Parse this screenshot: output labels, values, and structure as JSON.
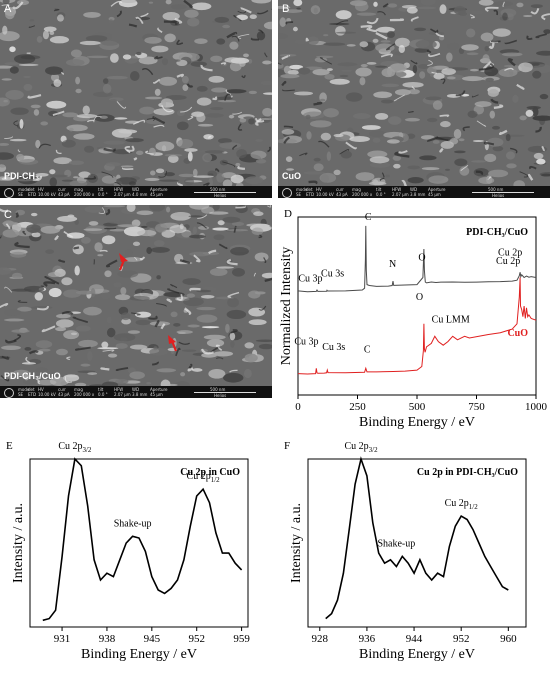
{
  "panels": {
    "A": {
      "letter": "A",
      "label": "PDI-CH₃",
      "info": {
        "headers": [
          "mode",
          "det",
          "HV",
          "curr",
          "mag",
          "tilt",
          "HFW",
          "WD",
          "Aperture"
        ],
        "values": [
          "SE",
          "ETD",
          "10.00 kV",
          "43 pA",
          "200 000 x",
          "0.0 °",
          "2.07 µm",
          "4.0 mm",
          "45 µm"
        ],
        "scale": "500 nm",
        "brand": "Helios"
      }
    },
    "B": {
      "letter": "B",
      "label": "CuO",
      "info": {
        "headers": [
          "mode",
          "det",
          "HV",
          "curr",
          "mag",
          "tilt",
          "HFW",
          "WD",
          "Aperture"
        ],
        "values": [
          "SE",
          "ETD",
          "10.00 kV",
          "43 pA",
          "200 000 x",
          "0.0 °",
          "2.07 µm",
          "3.8 mm",
          "45 µm"
        ],
        "scale": "500 nm",
        "brand": "Helios"
      }
    },
    "C": {
      "letter": "C",
      "label": "PDI-CH₃/CuO",
      "info": {
        "headers": [
          "mode",
          "det",
          "HV",
          "curr",
          "mag",
          "tilt",
          "HFW",
          "WD",
          "Aperture"
        ],
        "values": [
          "SE",
          "ETD",
          "10.00 kV",
          "43 pA",
          "200 000 x",
          "0.0 °",
          "2.07 µm",
          "3.8 mm",
          "45 µm"
        ],
        "scale": "500 nm",
        "brand": "Helios"
      }
    }
  },
  "colors": {
    "pdi_line": "#4a4a4a",
    "cuo_line": "#e02020",
    "axis": "#000000",
    "arrow": "#e02020"
  },
  "chart_data": [
    {
      "id": "D",
      "letter": "D",
      "type": "line",
      "xlabel": "Binding Energy / eV",
      "ylabel": "Normalized Intensity",
      "xlim": [
        0,
        1000
      ],
      "xticks": [
        0,
        250,
        500,
        750,
        1000
      ],
      "ylim": [
        0,
        1
      ],
      "series": [
        {
          "name": "PDI-CH₃/CuO",
          "color": "#4a4a4a",
          "x": [
            0,
            40,
            77,
            80,
            83,
            120,
            122,
            124,
            200,
            270,
            280,
            283,
            285,
            287,
            290,
            300,
            330,
            380,
            396,
            399,
            402,
            450,
            500,
            525,
            529,
            531,
            535,
            540,
            560,
            580,
            600,
            650,
            700,
            750,
            800,
            850,
            900,
            920,
            930,
            933,
            936,
            940,
            950,
            960,
            970,
            980,
            1000
          ],
          "y": [
            0.585,
            0.58,
            0.582,
            0.59,
            0.582,
            0.583,
            0.588,
            0.584,
            0.585,
            0.59,
            0.6,
            0.76,
            0.95,
            0.7,
            0.62,
            0.615,
            0.61,
            0.612,
            0.615,
            0.64,
            0.616,
            0.618,
            0.62,
            0.66,
            0.82,
            0.7,
            0.635,
            0.63,
            0.635,
            0.632,
            0.634,
            0.635,
            0.633,
            0.634,
            0.636,
            0.637,
            0.64,
            0.645,
            0.67,
            0.69,
            0.665,
            0.675,
            0.66,
            0.668,
            0.662,
            0.665,
            0.66
          ]
        },
        {
          "name": "CuO",
          "color": "#e02020",
          "x": [
            0,
            40,
            74,
            77,
            80,
            83,
            110,
            120,
            123,
            126,
            200,
            280,
            285,
            290,
            330,
            400,
            450,
            500,
            520,
            527,
            529,
            531,
            534,
            540,
            560,
            575,
            590,
            610,
            630,
            650,
            670,
            700,
            720,
            760,
            800,
            850,
            900,
            920,
            930,
            933,
            935,
            940,
            945,
            950,
            955,
            960,
            965,
            970,
            980,
            1000
          ],
          "y": [
            0.12,
            0.118,
            0.12,
            0.15,
            0.125,
            0.122,
            0.123,
            0.125,
            0.14,
            0.126,
            0.125,
            0.128,
            0.15,
            0.13,
            0.13,
            0.132,
            0.134,
            0.14,
            0.16,
            0.25,
            0.4,
            0.26,
            0.24,
            0.27,
            0.29,
            0.33,
            0.3,
            0.28,
            0.3,
            0.33,
            0.31,
            0.33,
            0.32,
            0.33,
            0.34,
            0.35,
            0.37,
            0.4,
            0.55,
            0.66,
            0.5,
            0.48,
            0.44,
            0.5,
            0.43,
            0.49,
            0.44,
            0.45,
            0.43,
            0.42
          ]
        }
      ],
      "legend": [
        {
          "text": "PDI-CH₃/CuO",
          "color": "#000000"
        },
        {
          "text": "CuO",
          "color": "#e02020"
        }
      ],
      "annotations": [
        {
          "text": "C",
          "series": 0,
          "x": 285
        },
        {
          "text": "N",
          "series": 0,
          "x": 399
        },
        {
          "text": "O",
          "series": 0,
          "x": 531
        },
        {
          "text": "Cu 3p",
          "series": 0,
          "x": 77
        },
        {
          "text": "Cu 3s",
          "series": 0,
          "x": 122
        },
        {
          "text": "Cu 2p",
          "series": 0,
          "x": 933
        },
        {
          "text": "Cu 3p",
          "series": 1,
          "x": 77
        },
        {
          "text": "Cu 3s",
          "series": 1,
          "x": 123
        },
        {
          "text": "C",
          "series": 1,
          "x": 285
        },
        {
          "text": "O",
          "series": 1,
          "x": 529
        },
        {
          "text": "Cu LMM",
          "series": 1,
          "x": 570
        },
        {
          "text": "Cu 2p",
          "series": 1,
          "x": 933
        }
      ]
    },
    {
      "id": "E",
      "letter": "E",
      "type": "line",
      "title": "Cu 2p in CuO",
      "xlabel": "Binding Energy / eV",
      "ylabel": "Intensity / a.u.",
      "xlim": [
        926,
        960
      ],
      "xticks": [
        931,
        938,
        945,
        952,
        959
      ],
      "ylim": [
        0,
        1
      ],
      "series": [
        {
          "color": "#000000",
          "x": [
            928,
            929,
            930,
            931,
            932,
            933,
            934,
            935,
            936,
            937,
            938,
            939,
            940,
            941,
            942,
            943,
            944,
            945,
            946,
            947,
            948,
            949,
            950,
            951,
            952,
            953,
            954,
            955,
            956,
            957,
            958,
            959
          ],
          "y": [
            0.04,
            0.05,
            0.1,
            0.42,
            0.78,
            1.0,
            0.96,
            0.72,
            0.4,
            0.28,
            0.32,
            0.3,
            0.4,
            0.5,
            0.54,
            0.53,
            0.45,
            0.3,
            0.22,
            0.2,
            0.23,
            0.28,
            0.4,
            0.6,
            0.78,
            0.82,
            0.74,
            0.56,
            0.44,
            0.44,
            0.38,
            0.34
          ]
        }
      ],
      "annotations": [
        {
          "text": "Cu 2p",
          "sub": "3/2",
          "x": 933,
          "y": 1.0
        },
        {
          "text": "Shake-up",
          "x": 942,
          "y": 0.54
        },
        {
          "text": "Cu 2p",
          "sub": "1/2",
          "x": 953,
          "y": 0.82
        }
      ]
    },
    {
      "id": "F",
      "letter": "F",
      "type": "line",
      "title": "Cu 2p in PDI-CH₃/CuO",
      "xlabel": "Binding Energy / eV",
      "ylabel": "Intensity / a.u.",
      "xlim": [
        926,
        963
      ],
      "xticks": [
        928,
        936,
        944,
        952,
        960
      ],
      "ylim": [
        0,
        1
      ],
      "series": [
        {
          "color": "#000000",
          "x": [
            929,
            930,
            931,
            932,
            933,
            934,
            935,
            936,
            937,
            938,
            939,
            940,
            941,
            942,
            943,
            944,
            945,
            946,
            947,
            948,
            949,
            950,
            951,
            952,
            953,
            954,
            955,
            956,
            957,
            958,
            959,
            960
          ],
          "y": [
            0.05,
            0.08,
            0.16,
            0.32,
            0.58,
            0.85,
            1.0,
            0.9,
            0.62,
            0.44,
            0.38,
            0.4,
            0.36,
            0.42,
            0.38,
            0.32,
            0.4,
            0.32,
            0.28,
            0.32,
            0.3,
            0.48,
            0.6,
            0.66,
            0.64,
            0.58,
            0.5,
            0.42,
            0.36,
            0.3,
            0.24,
            0.22
          ]
        }
      ],
      "annotations": [
        {
          "text": "Cu 2p",
          "sub": "3/2",
          "x": 935,
          "y": 1.0
        },
        {
          "text": "Shake-up",
          "x": 941,
          "y": 0.42
        },
        {
          "text": "Cu 2p",
          "sub": "1/2",
          "x": 952,
          "y": 0.66
        }
      ]
    }
  ]
}
